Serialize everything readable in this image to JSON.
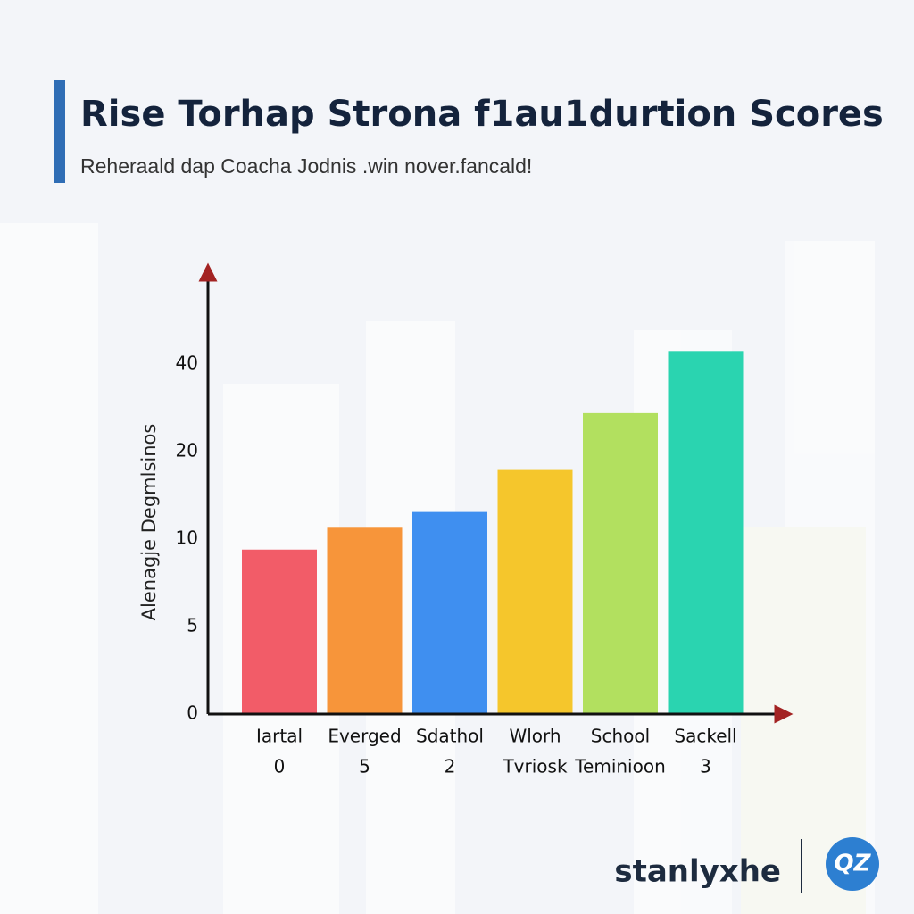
{
  "chart_data": {
    "type": "bar",
    "title": "Rise Torhap Strona f1au1durtion Scores",
    "subtitle": "Reheraald dap Coacha Jodnis .win nover.fancald!",
    "y_label": "Alenagje Degmlsinos",
    "categories": [
      [
        "Iartal",
        "0"
      ],
      [
        "Everged",
        "5"
      ],
      [
        "Sdathol",
        "2"
      ],
      [
        "Wlorh",
        "Tvriosk"
      ],
      [
        "School",
        "Teminioon"
      ],
      [
        "Sackell",
        "3"
      ]
    ],
    "values": [
      9.4,
      11.4,
      13.1,
      17.9,
      28.8,
      43
    ],
    "colors": [
      "#f25c68",
      "#f7953a",
      "#3f8ff0",
      "#f5c62c",
      "#b2e05f",
      "#2ad4b0"
    ],
    "ylim": [
      0,
      60
    ],
    "yticks": [
      0,
      5,
      10,
      20,
      40
    ],
    "brand": "stanlyxhe",
    "logo": "QZ"
  }
}
